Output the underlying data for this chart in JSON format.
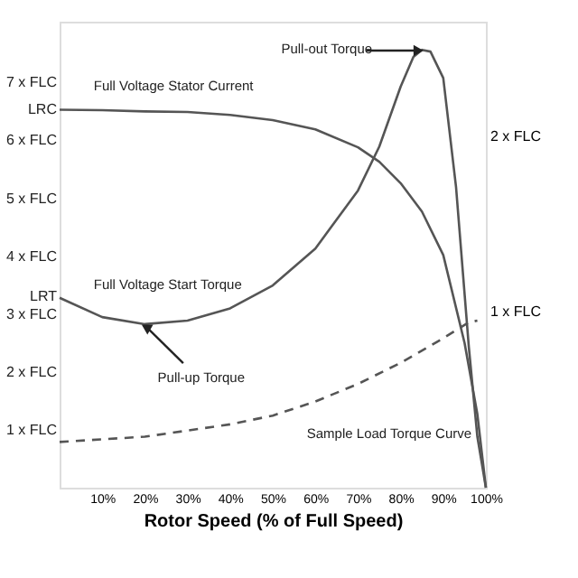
{
  "chart_data": {
    "type": "line",
    "xlabel": "Rotor Speed (% of Full Speed)",
    "x": [
      0,
      10,
      20,
      30,
      40,
      50,
      60,
      70,
      75,
      80,
      85,
      90,
      95,
      98,
      100
    ],
    "series": [
      {
        "color": "#555555",
        "values": [
          6.53,
          6.52,
          6.5,
          6.49,
          6.44,
          6.35,
          6.19,
          5.88,
          5.63,
          5.26,
          4.77,
          4.02,
          2.5,
          1.27,
          0
        ]
      },
      {
        "color": "#555555",
        "axis": "y2",
        "x": [
          0,
          10,
          20,
          30,
          40,
          50,
          60,
          70,
          75,
          80,
          83,
          85,
          87,
          90,
          93,
          96,
          98,
          100
        ],
        "values": [
          1.08,
          0.97,
          0.93,
          0.95,
          1.02,
          1.15,
          1.36,
          1.69,
          1.94,
          2.28,
          2.45,
          2.49,
          2.48,
          2.33,
          1.71,
          0.8,
          0.29,
          0
        ]
      },
      {
        "color": "#555555",
        "axis": "y2",
        "line_style": "dashed",
        "x": [
          0,
          20,
          40,
          50,
          60,
          70,
          80,
          90,
          96,
          98
        ],
        "values": [
          0.26,
          0.29,
          0.36,
          0.41,
          0.49,
          0.59,
          0.71,
          0.85,
          0.94,
          0.95
        ]
      }
    ],
    "xlim": [
      0,
      100
    ],
    "xticks": [
      {
        "value": 10,
        "label": "10%"
      },
      {
        "value": 20,
        "label": "20%"
      },
      {
        "value": 30,
        "label": "30%"
      },
      {
        "value": 40,
        "label": "40%"
      },
      {
        "value": 50,
        "label": "50%"
      },
      {
        "value": 60,
        "label": "60%"
      },
      {
        "value": 70,
        "label": "70%"
      },
      {
        "value": 80,
        "label": "80%"
      },
      {
        "value": 90,
        "label": "90%"
      },
      {
        "value": 100,
        "label": "100%"
      }
    ],
    "ylim": [
      0,
      8.05
    ],
    "yticks": [
      {
        "value": 1,
        "label": "1 x FLC"
      },
      {
        "value": 2,
        "label": "2 x FLC"
      },
      {
        "value": 3,
        "label": "3 x FLC"
      },
      {
        "value": 3.3,
        "label": "LRT"
      },
      {
        "value": 4,
        "label": "4 x FLC"
      },
      {
        "value": 5,
        "label": "5 x FLC"
      },
      {
        "value": 6,
        "label": "6 x FLC"
      },
      {
        "value": 6.53,
        "label": "LRC"
      },
      {
        "value": 7,
        "label": "7 x FLC"
      }
    ],
    "y2lim": [
      0,
      2.65
    ],
    "y2ticks": [
      {
        "value": 1,
        "label": "1 x FLC"
      },
      {
        "value": 2,
        "label": "2 x FLC"
      }
    ],
    "annotations": [
      "Full Voltage Stator Current",
      {
        "text": "Pull-out Torque",
        "x": 85,
        "y": 7.55
      },
      "Full Voltage Start Torque",
      {
        "text": "Pull-up Torque",
        "x": 20,
        "y": 2.82
      },
      "Sample Load Torque Curve"
    ],
    "grid": false,
    "marker": "none",
    "line_style": "solid"
  }
}
